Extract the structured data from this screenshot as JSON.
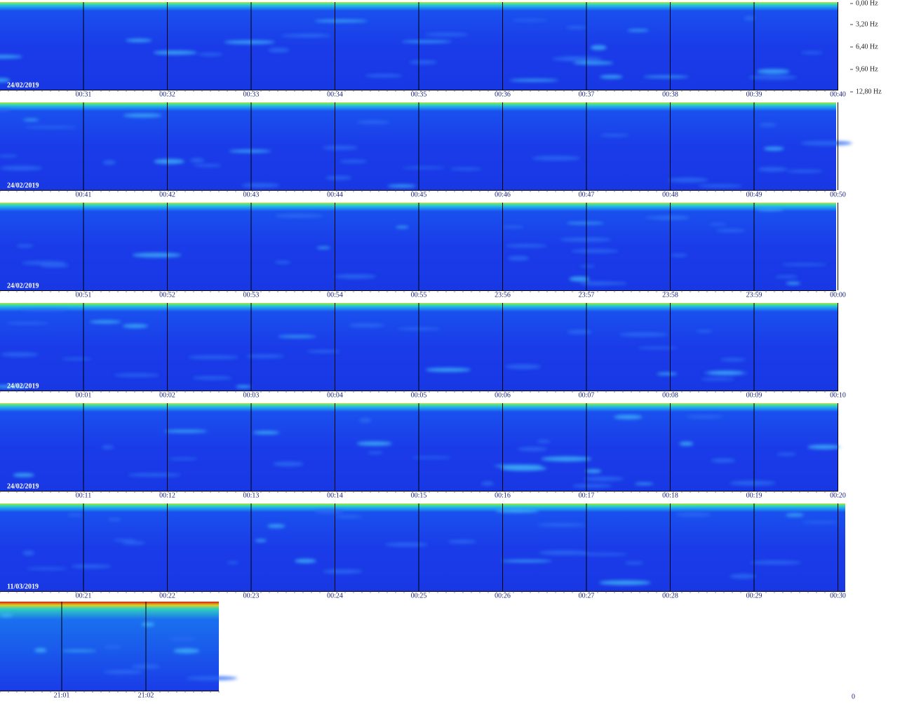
{
  "frequency_labels": [
    "0,00 Hz",
    "3,20 Hz",
    "6,40 Hz",
    "9,60 Hz",
    "12,80 Hz"
  ],
  "rows": [
    {
      "date": "24/02/2019",
      "times": [
        "00:31",
        "00:32",
        "00:33",
        "00:34",
        "00:35",
        "00:36",
        "00:37",
        "00:38",
        "00:39",
        "00:40"
      ]
    },
    {
      "date": "24/02/2019",
      "times": [
        "00:41",
        "00:42",
        "00:43",
        "00:44",
        "00:45",
        "00:46",
        "00:47",
        "00:48",
        "00:49",
        "00:50"
      ]
    },
    {
      "date": "24/02/2019",
      "times": [
        "00:51",
        "00:52",
        "00:53",
        "00:54",
        "00:55",
        "23:56",
        "23:57",
        "23:58",
        "23:59",
        "00:00"
      ]
    },
    {
      "date": "24/02/2019",
      "times": [
        "00:01",
        "00:02",
        "00:03",
        "00:04",
        "00:05",
        "00:06",
        "00:07",
        "00:08",
        "00:09",
        "00:10"
      ]
    },
    {
      "date": "24/02/2019",
      "times": [
        "00:11",
        "00:12",
        "00:13",
        "00:14",
        "00:15",
        "00:16",
        "00:17",
        "00:18",
        "00:19",
        "00:20"
      ]
    },
    {
      "date": "11/03/2019",
      "times": [
        "00:21",
        "00:22",
        "00:23",
        "00:24",
        "00:25",
        "00:26",
        "00:27",
        "00:28",
        "00:29",
        "00:30"
      ]
    },
    {
      "times": [
        "21:01",
        "21:02"
      ]
    }
  ],
  "corner_label": "0"
}
